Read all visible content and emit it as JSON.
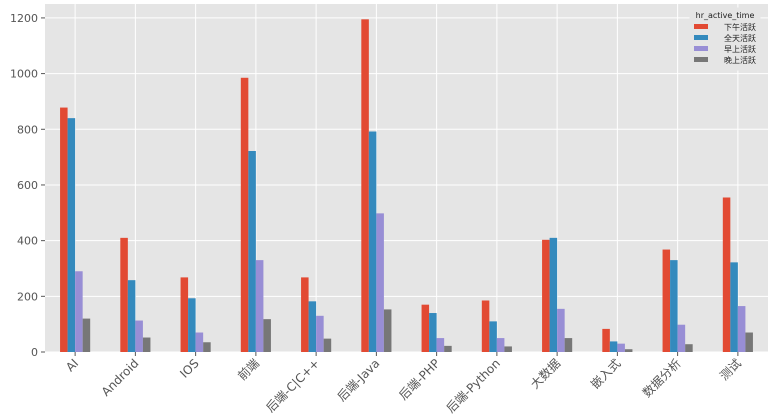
{
  "chart_data": {
    "type": "bar",
    "title": "",
    "xlabel": "",
    "ylabel": "",
    "ylim": [
      0,
      1250
    ],
    "yticks": [
      0,
      200,
      400,
      600,
      800,
      1000,
      1200
    ],
    "grid": true,
    "legend_placement": "top-right",
    "legend_title": "hr_active_time",
    "categories": [
      "AI",
      "Android",
      "IOS",
      "前端",
      "后端-C|C++",
      "后端-Java",
      "后端-PHP",
      "后端-Python",
      "大数据",
      "嵌入式",
      "数据分析",
      "测试"
    ],
    "series": [
      {
        "name": "下午活跃",
        "color": "#e24a33",
        "values": [
          878,
          410,
          268,
          985,
          268,
          1195,
          170,
          185,
          403,
          83,
          368,
          555
        ]
      },
      {
        "name": "全天活跃",
        "color": "#348abd",
        "values": [
          840,
          258,
          193,
          722,
          182,
          792,
          140,
          110,
          410,
          38,
          330,
          322
        ]
      },
      {
        "name": "早上活跃",
        "color": "#988ed5",
        "values": [
          290,
          113,
          70,
          330,
          130,
          498,
          50,
          50,
          155,
          30,
          98,
          165
        ]
      },
      {
        "name": "晚上活跃",
        "color": "#777777",
        "values": [
          120,
          52,
          35,
          118,
          48,
          153,
          22,
          20,
          50,
          10,
          28,
          70
        ]
      }
    ]
  },
  "style": {
    "plot_background": "#e5e5e5",
    "grid_color": "#ffffff",
    "tick_label_color": "#555555"
  }
}
